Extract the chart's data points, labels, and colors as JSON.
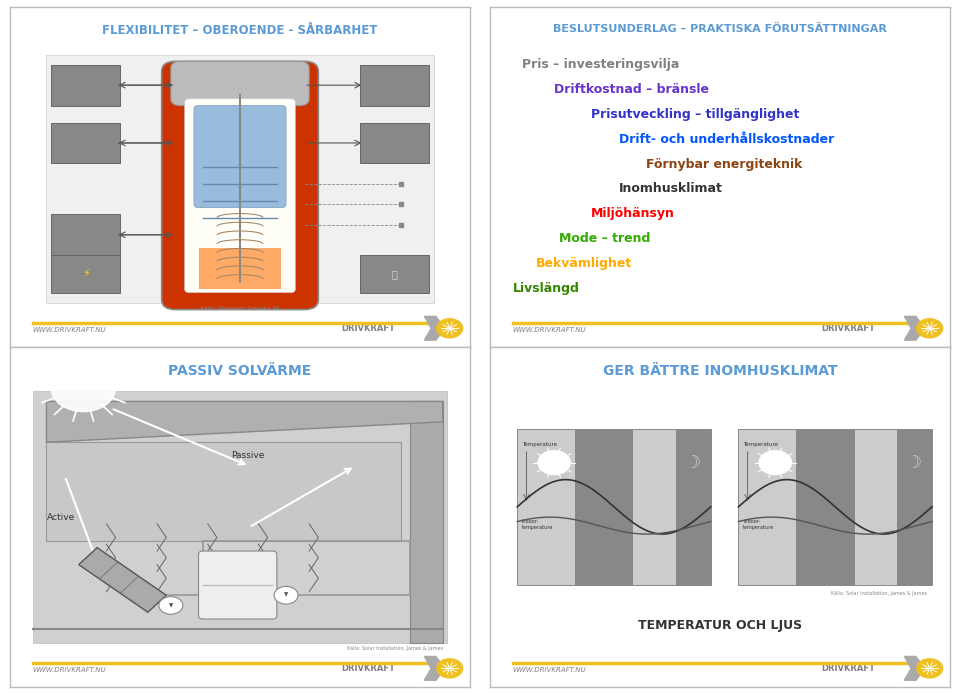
{
  "panel_border_color": "#cccccc",
  "background": "#ffffff",
  "title_color_blue": "#5b9bd5",
  "title_color_gray": "#808080",
  "panel1": {
    "title": "FLEXIBILITET – OBEROENDE - SÅRBARHET",
    "title_color": "#5b9bd5",
    "footer_text": "WWW.DRIVKRAFT.NU",
    "footer_brand": "DRIVKRAFT"
  },
  "panel2": {
    "title": "BESLUTSUNDERLAG – PRAKTISKA FÖRUTSÄTTNINGAR",
    "title_color": "#5b9bd5",
    "items": [
      {
        "text": "Pris – investeringsvilja",
        "color": "#808080",
        "indent": 0.05
      },
      {
        "text": "Driftkostnad – bränsle",
        "color": "#6633cc",
        "indent": 0.12
      },
      {
        "text": "Prisutveckling – tillgänglighet",
        "color": "#3333cc",
        "indent": 0.2
      },
      {
        "text": "Drift- och underhållskostnader",
        "color": "#0055ff",
        "indent": 0.26
      },
      {
        "text": "Förnybar energiteknik",
        "color": "#8b4513",
        "indent": 0.32
      },
      {
        "text": "Inomhusklimat",
        "color": "#333333",
        "indent": 0.26
      },
      {
        "text": "Miljöhänsyn",
        "color": "#ff0000",
        "indent": 0.2
      },
      {
        "text": "Mode – trend",
        "color": "#33aa00",
        "indent": 0.13
      },
      {
        "text": "Bekvämlighet",
        "color": "#ffaa00",
        "indent": 0.08
      },
      {
        "text": "Livslängd",
        "color": "#338800",
        "indent": 0.03
      }
    ],
    "footer_text": "WWW.DRIVKRAFT.NU",
    "footer_brand": "DRIVKRAFT"
  },
  "panel3": {
    "title": "PASSIV SOLVÄRME",
    "title_color": "#5b9bd5",
    "footer_text": "WWW.DRIVKRAFT.NU",
    "footer_brand": "DRIVKRAFT"
  },
  "panel4": {
    "title": "GER BÄTTRE INOMHUSKLIMAT",
    "title_color": "#5b9bd5",
    "footer_text": "WWW.DRIVKRAFT.NU",
    "footer_brand": "DRIVKRAFT",
    "bottom_text": "TEMPERATUR OCH LJUS"
  },
  "footer_line_color": "#f0c020",
  "footer_text_color": "#808080",
  "footer_brand_color": "#808080"
}
